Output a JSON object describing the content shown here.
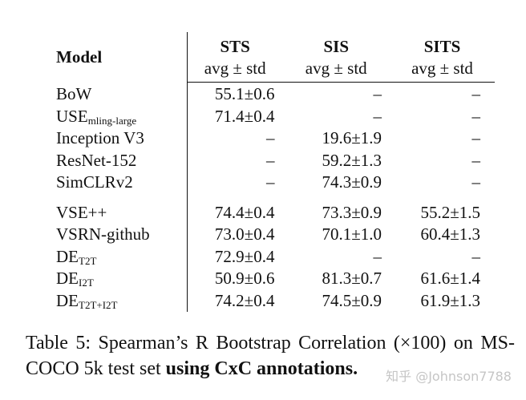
{
  "table": {
    "model_header": "Model",
    "groups": [
      {
        "name": "STS",
        "sub": "avg ± std"
      },
      {
        "name": "SIS",
        "sub": "avg ± std"
      },
      {
        "name": "SITS",
        "sub": "avg ± std"
      }
    ],
    "section1": [
      {
        "model": "BoW",
        "sub": "",
        "sts": "55.1±0.6",
        "sis": "–",
        "sits": "–"
      },
      {
        "model": "USE",
        "sub": "mling-large",
        "sts": "71.4±0.4",
        "sis": "–",
        "sits": "–"
      },
      {
        "model": "Inception V3",
        "sub": "",
        "sts": "–",
        "sis": "19.6±1.9",
        "sits": "–"
      },
      {
        "model": "ResNet-152",
        "sub": "",
        "sts": "–",
        "sis": "59.2±1.3",
        "sits": "–"
      },
      {
        "model": "SimCLRv2",
        "sub": "",
        "sts": "–",
        "sis": "74.3±0.9",
        "sits": "–"
      }
    ],
    "section2": [
      {
        "model": "VSE++",
        "sub": "",
        "sts": "74.4±0.4",
        "sis": "73.3±0.9",
        "sits": "55.2±1.5"
      },
      {
        "model": "VSRN-github",
        "sub": "",
        "sts": "73.0±0.4",
        "sis": "70.1±1.0",
        "sits": "60.4±1.3"
      },
      {
        "model": "DE",
        "sub": "T2T",
        "sts": "72.9±0.4",
        "sis": "–",
        "sits": "–"
      },
      {
        "model": "DE",
        "sub": "I2T",
        "sts": "50.9±0.6",
        "sis": "81.3±0.7",
        "sits": "61.6±1.4"
      },
      {
        "model": "DE",
        "sub": "T2T+I2T",
        "sts": "74.2±0.4",
        "sis": "74.5±0.9",
        "sits": "61.9±1.3"
      }
    ]
  },
  "caption": {
    "lead": "Table 5: Spearman’s R Bootstrap Correlation (×100) on MS-COCO 5k test set ",
    "bold": "using CxC annotations."
  },
  "watermark": "知乎 @Johnson7788"
}
